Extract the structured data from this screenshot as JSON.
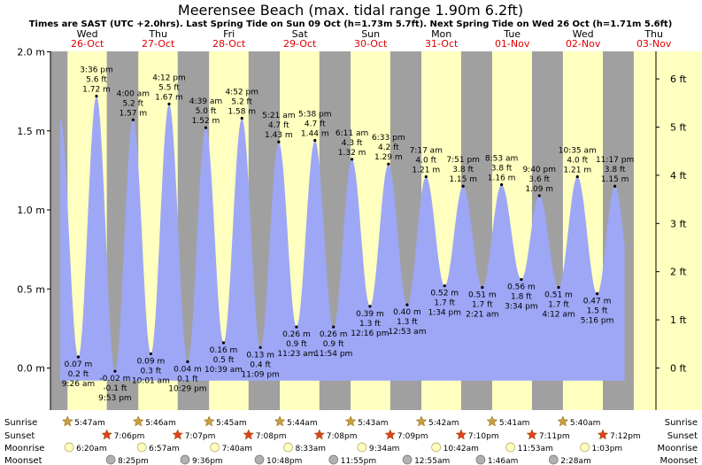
{
  "title": "Meerensee Beach (max. tidal range 1.90m 6.2ft)",
  "subtitle": "Times are SAST (UTC +2.0hrs). Last Spring Tide on Sun 09 Oct (h=1.73m 5.7ft). Next Spring Tide on Wed 26 Oct (h=1.71m 5.6ft)",
  "days": [
    {
      "day": "Wed",
      "date": "26-Oct"
    },
    {
      "day": "Thu",
      "date": "27-Oct"
    },
    {
      "day": "Fri",
      "date": "28-Oct"
    },
    {
      "day": "Sat",
      "date": "29-Oct"
    },
    {
      "day": "Sun",
      "date": "30-Oct"
    },
    {
      "day": "Mon",
      "date": "31-Oct"
    },
    {
      "day": "Tue",
      "date": "01-Nov"
    },
    {
      "day": "Wed",
      "date": "02-Nov"
    },
    {
      "day": "Thu",
      "date": "03-Nov"
    }
  ],
  "chart_data": {
    "type": "area",
    "x_unit": "hours from 00:00 on 26-Oct",
    "ylim_m": [
      -0.15,
      2.0
    ],
    "y_ticks_m": [
      "2.0 m",
      "1.5 m",
      "1.0 m",
      "0.5 m",
      "0.0 m"
    ],
    "y_ticks_ft": [
      "6 ft",
      "5 ft",
      "4 ft",
      "3 ft",
      "2 ft",
      "1 ft",
      "0 ft"
    ],
    "colors": {
      "water": "#9da7f5",
      "day": "#ffffc0",
      "night": "#a0a0a0"
    },
    "tides": [
      {
        "type": "low",
        "time": "9:26 am",
        "h_m": "0.07 m",
        "h_ft": "0.2 ft",
        "hours": 9.43,
        "value": 0.07
      },
      {
        "type": "high",
        "time": "3:36 pm",
        "h_m": "1.72 m",
        "h_ft": "5.6 ft",
        "hours": 15.6,
        "value": 1.72
      },
      {
        "type": "low",
        "time": "9:53 pm",
        "h_m": "-0.02 m",
        "h_ft": "-0.1 ft",
        "hours": 21.88,
        "value": -0.02
      },
      {
        "type": "high",
        "time": "4:00 am",
        "h_m": "1.57 m",
        "h_ft": "5.2 ft",
        "hours": 28.0,
        "value": 1.57
      },
      {
        "type": "low",
        "time": "10:01 am",
        "h_m": "0.09 m",
        "h_ft": "0.3 ft",
        "hours": 34.02,
        "value": 0.09
      },
      {
        "type": "high",
        "time": "4:12 pm",
        "h_m": "1.67 m",
        "h_ft": "5.5 ft",
        "hours": 40.2,
        "value": 1.67
      },
      {
        "type": "low",
        "time": "10:29 pm",
        "h_m": "0.04 m",
        "h_ft": "0.1 ft",
        "hours": 46.48,
        "value": 0.04
      },
      {
        "type": "high",
        "time": "4:39 am",
        "h_m": "1.52 m",
        "h_ft": "5.0 ft",
        "hours": 52.65,
        "value": 1.52
      },
      {
        "type": "low",
        "time": "10:39 am",
        "h_m": "0.16 m",
        "h_ft": "0.5 ft",
        "hours": 58.65,
        "value": 0.16
      },
      {
        "type": "high",
        "time": "4:52 pm",
        "h_m": "1.58 m",
        "h_ft": "5.2 ft",
        "hours": 64.87,
        "value": 1.58
      },
      {
        "type": "low",
        "time": "11:09 pm",
        "h_m": "0.13 m",
        "h_ft": "0.4 ft",
        "hours": 71.15,
        "value": 0.13
      },
      {
        "type": "high",
        "time": "5:21 am",
        "h_m": "1.43 m",
        "h_ft": "4.7 ft",
        "hours": 77.35,
        "value": 1.43
      },
      {
        "type": "low",
        "time": "11:23 am",
        "h_m": "0.26 m",
        "h_ft": "0.9 ft",
        "hours": 83.38,
        "value": 0.26
      },
      {
        "type": "high",
        "time": "5:38 pm",
        "h_m": "1.44 m",
        "h_ft": "4.7 ft",
        "hours": 89.63,
        "value": 1.44
      },
      {
        "type": "low",
        "time": "11:54 pm",
        "h_m": "0.26 m",
        "h_ft": "0.9 ft",
        "hours": 95.9,
        "value": 0.26
      },
      {
        "type": "high",
        "time": "6:11 am",
        "h_m": "1.32 m",
        "h_ft": "4.3 ft",
        "hours": 102.18,
        "value": 1.32
      },
      {
        "type": "low",
        "time": "12:16 pm",
        "h_m": "0.39 m",
        "h_ft": "1.3 ft",
        "hours": 108.27,
        "value": 0.39
      },
      {
        "type": "high",
        "time": "6:33 pm",
        "h_m": "1.29 m",
        "h_ft": "4.2 ft",
        "hours": 114.55,
        "value": 1.29
      },
      {
        "type": "low",
        "time": "12:53 am",
        "h_m": "0.40 m",
        "h_ft": "1.3 ft",
        "hours": 120.88,
        "value": 0.4
      },
      {
        "type": "high",
        "time": "7:17 am",
        "h_m": "1.21 m",
        "h_ft": "4.0 ft",
        "hours": 127.28,
        "value": 1.21
      },
      {
        "type": "low",
        "time": "1:34 pm",
        "h_m": "0.52 m",
        "h_ft": "1.7 ft",
        "hours": 133.57,
        "value": 0.52
      },
      {
        "type": "high",
        "time": "7:51 pm",
        "h_m": "1.15 m",
        "h_ft": "3.8 ft",
        "hours": 139.85,
        "value": 1.15
      },
      {
        "type": "low",
        "time": "2:21 am",
        "h_m": "0.51 m",
        "h_ft": "1.7 ft",
        "hours": 146.35,
        "value": 0.51
      },
      {
        "type": "high",
        "time": "8:53 am",
        "h_m": "1.16 m",
        "h_ft": "3.8 ft",
        "hours": 152.88,
        "value": 1.16
      },
      {
        "type": "low",
        "time": "3:34 pm",
        "h_m": "0.56 m",
        "h_ft": "1.8 ft",
        "hours": 159.57,
        "value": 0.56
      },
      {
        "type": "high",
        "time": "9:40 pm",
        "h_m": "1.09 m",
        "h_ft": "3.6 ft",
        "hours": 165.67,
        "value": 1.09
      },
      {
        "type": "low",
        "time": "4:12 am",
        "h_m": "0.51 m",
        "h_ft": "1.7 ft",
        "hours": 172.2,
        "value": 0.51
      },
      {
        "type": "high",
        "time": "10:35 am",
        "h_m": "1.21 m",
        "h_ft": "4.0 ft",
        "hours": 178.58,
        "value": 1.21
      },
      {
        "type": "low",
        "time": "5:16 pm",
        "h_m": "0.47 m",
        "h_ft": "1.5 ft",
        "hours": 185.27,
        "value": 0.47
      },
      {
        "type": "high",
        "time": "11:17 pm",
        "h_m": "1.15 m",
        "h_ft": "3.8 ft",
        "hours": 191.28,
        "value": 1.15
      }
    ]
  },
  "rows": {
    "sunrise_label": "Sunrise",
    "sunset_label": "Sunset",
    "moonrise_label": "Moonrise",
    "moonset_label": "Moonset"
  },
  "sunrise": [
    {
      "time": "5:47am",
      "hours": 5.78
    },
    {
      "time": "5:46am",
      "hours": 29.77
    },
    {
      "time": "5:45am",
      "hours": 53.75
    },
    {
      "time": "5:44am",
      "hours": 77.73
    },
    {
      "time": "5:43am",
      "hours": 101.72
    },
    {
      "time": "5:42am",
      "hours": 125.7
    },
    {
      "time": "5:41am",
      "hours": 149.68
    },
    {
      "time": "5:40am",
      "hours": 173.67
    }
  ],
  "sunset": [
    {
      "time": "7:06pm",
      "hours": 19.1
    },
    {
      "time": "7:07pm",
      "hours": 43.12
    },
    {
      "time": "7:08pm",
      "hours": 67.13
    },
    {
      "time": "7:08pm",
      "hours": 91.13
    },
    {
      "time": "7:09pm",
      "hours": 115.15
    },
    {
      "time": "7:10pm",
      "hours": 139.17
    },
    {
      "time": "7:11pm",
      "hours": 163.18
    },
    {
      "time": "7:12pm",
      "hours": 187.2
    }
  ],
  "moonrise": [
    {
      "time": "6:20am",
      "hours": 6.33
    },
    {
      "time": "6:57am",
      "hours": 30.95
    },
    {
      "time": "7:40am",
      "hours": 55.67
    },
    {
      "time": "8:33am",
      "hours": 80.55
    },
    {
      "time": "9:34am",
      "hours": 105.57
    },
    {
      "time": "10:42am",
      "hours": 130.7
    },
    {
      "time": "11:53am",
      "hours": 155.88
    },
    {
      "time": "1:03pm",
      "hours": 181.05
    }
  ],
  "moonset": [
    {
      "time": "8:25pm",
      "hours": 20.42
    },
    {
      "time": "9:36pm",
      "hours": 45.6
    },
    {
      "time": "10:48pm",
      "hours": 70.8
    },
    {
      "time": "11:55pm",
      "hours": 95.92
    },
    {
      "time": "12:55am",
      "hours": 120.92
    },
    {
      "time": "1:46am",
      "hours": 145.77
    },
    {
      "time": "2:28am",
      "hours": 170.47
    }
  ]
}
